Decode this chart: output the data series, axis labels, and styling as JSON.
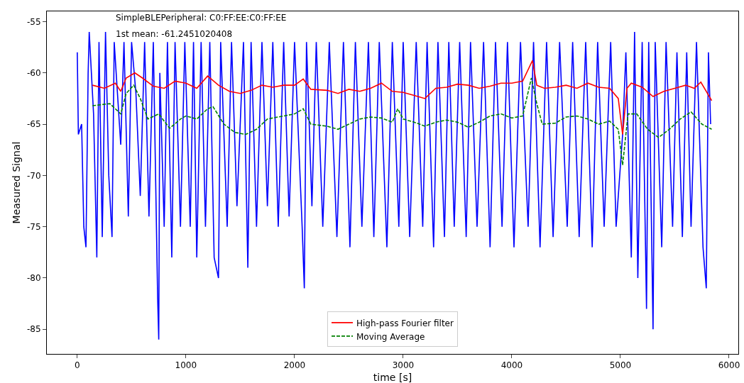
{
  "chart_data": {
    "type": "line",
    "xlabel": "time [s]",
    "ylabel": "Measured Signal",
    "annotations": [
      "SimpleBLEPeripheral: C0:FF:EE:C0:FF:EE",
      "1st mean: -61.2451020408"
    ],
    "xlim": [
      -280,
      6085
    ],
    "xticks": [
      0,
      1000,
      2000,
      3000,
      4000,
      5000,
      6000
    ],
    "ylim": [
      -87.4,
      -54
    ],
    "yticks": [
      -85,
      -80,
      -75,
      -70,
      -65,
      -60,
      -55
    ],
    "grid": false,
    "legend": "bottom",
    "marker": "none",
    "series": [
      {
        "color": "#0000ff",
        "line_style": "solid",
        "x": [
          0,
          10,
          40,
          60,
          80,
          100,
          110,
          150,
          180,
          200,
          230,
          260,
          290,
          320,
          340,
          370,
          400,
          430,
          470,
          500,
          540,
          580,
          620,
          660,
          700,
          740,
          750,
          760,
          800,
          830,
          870,
          900,
          950,
          990,
          1040,
          1070,
          1100,
          1140,
          1180,
          1220,
          1260,
          1300,
          1320,
          1380,
          1420,
          1470,
          1530,
          1570,
          1600,
          1650,
          1700,
          1750,
          1800,
          1850,
          1900,
          1950,
          2000,
          2070,
          2090,
          2110,
          2160,
          2200,
          2260,
          2320,
          2390,
          2450,
          2510,
          2560,
          2620,
          2680,
          2730,
          2780,
          2850,
          2900,
          2960,
          3000,
          3060,
          3120,
          3180,
          3220,
          3280,
          3320,
          3380,
          3420,
          3470,
          3520,
          3580,
          3620,
          3680,
          3740,
          3800,
          3850,
          3910,
          3960,
          4020,
          4080,
          4150,
          4200,
          4260,
          4320,
          4380,
          4440,
          4510,
          4560,
          4620,
          4680,
          4740,
          4790,
          4850,
          4910,
          4960,
          5020,
          5050,
          5100,
          5130,
          5160,
          5200,
          5240,
          5260,
          5300,
          5320,
          5380,
          5420,
          5480,
          5520,
          5570,
          5610,
          5650,
          5700,
          5760,
          5790,
          5810,
          5830
        ],
        "values": [
          -58,
          -66,
          -65,
          -75,
          -77,
          -60,
          -56,
          -64,
          -78,
          -57,
          -76,
          -56,
          -70,
          -76,
          -57,
          -62,
          -67,
          -57,
          -74,
          -57,
          -62,
          -72,
          -57,
          -74,
          -57,
          -82,
          -86,
          -60,
          -75,
          -57,
          -78,
          -57,
          -75,
          -57,
          -75,
          -57,
          -78,
          -57,
          -75,
          -57,
          -78,
          -80,
          -57,
          -75,
          -57,
          -73,
          -57,
          -79,
          -57,
          -75,
          -57,
          -73,
          -57,
          -75,
          -57,
          -74,
          -57,
          -75,
          -81,
          -57,
          -73,
          -57,
          -75,
          -57,
          -76,
          -57,
          -77,
          -57,
          -75,
          -57,
          -76,
          -57,
          -77,
          -57,
          -75,
          -57,
          -76,
          -57,
          -75,
          -57,
          -77,
          -57,
          -76,
          -57,
          -75,
          -57,
          -76,
          -57,
          -75,
          -57,
          -77,
          -57,
          -75,
          -57,
          -77,
          -57,
          -75,
          -57,
          -77,
          -57,
          -76,
          -57,
          -75,
          -57,
          -76,
          -57,
          -77,
          -57,
          -75,
          -57,
          -75,
          -66,
          -58,
          -78,
          -56,
          -80,
          -57,
          -83,
          -57,
          -85,
          -57,
          -77,
          -57,
          -75,
          -58,
          -76,
          -58,
          -75,
          -57,
          -77,
          -81,
          -58,
          -65
        ]
      },
      {
        "name": "High-pass Fourier filter",
        "color": "#ff0000",
        "line_style": "solid",
        "x": [
          140,
          250,
          350,
          400,
          450,
          530,
          600,
          700,
          800,
          900,
          1000,
          1100,
          1200,
          1300,
          1400,
          1500,
          1600,
          1700,
          1800,
          1900,
          2000,
          2080,
          2150,
          2300,
          2400,
          2500,
          2600,
          2700,
          2800,
          2900,
          3000,
          3100,
          3200,
          3300,
          3400,
          3500,
          3600,
          3700,
          3800,
          3900,
          4000,
          4100,
          4190,
          4230,
          4300,
          4400,
          4500,
          4600,
          4700,
          4800,
          4900,
          4980,
          5020,
          5060,
          5100,
          5200,
          5300,
          5400,
          5500,
          5600,
          5680,
          5740,
          5840
        ],
        "values": [
          -61.2,
          -61.5,
          -61,
          -61.8,
          -60.5,
          -60,
          -60.5,
          -61.3,
          -61.5,
          -60.8,
          -61,
          -61.5,
          -60.3,
          -61.2,
          -61.8,
          -62,
          -61.7,
          -61.2,
          -61.4,
          -61.2,
          -61.2,
          -60.6,
          -61.6,
          -61.7,
          -62,
          -61.6,
          -61.8,
          -61.5,
          -61,
          -61.8,
          -61.9,
          -62.2,
          -62.5,
          -61.5,
          -61.4,
          -61.1,
          -61.2,
          -61.5,
          -61.3,
          -61,
          -61,
          -60.8,
          -58.8,
          -61.2,
          -61.5,
          -61.4,
          -61.2,
          -61.5,
          -61,
          -61.4,
          -61.5,
          -62.5,
          -66,
          -61.5,
          -61,
          -61.4,
          -62.3,
          -61.8,
          -61.5,
          -61.2,
          -61.5,
          -60.9,
          -62.7
        ]
      },
      {
        "name": "Moving Average",
        "color": "#008000",
        "line_style": "dashed",
        "x": [
          140,
          300,
          400,
          450,
          520,
          580,
          650,
          750,
          850,
          950,
          1000,
          1100,
          1200,
          1250,
          1350,
          1450,
          1550,
          1650,
          1750,
          1900,
          2000,
          2080,
          2150,
          2300,
          2400,
          2500,
          2600,
          2700,
          2800,
          2900,
          2950,
          3000,
          3100,
          3200,
          3300,
          3400,
          3500,
          3600,
          3700,
          3800,
          3900,
          4000,
          4100,
          4180,
          4230,
          4280,
          4400,
          4500,
          4600,
          4700,
          4800,
          4900,
          4980,
          5020,
          5070,
          5150,
          5250,
          5350,
          5450,
          5550,
          5650,
          5750,
          5840
        ],
        "values": [
          -63.2,
          -63,
          -64,
          -62,
          -61.2,
          -62.5,
          -64.5,
          -64,
          -65.4,
          -64.5,
          -64.2,
          -64.5,
          -63.5,
          -63.3,
          -65,
          -65.8,
          -66,
          -65.5,
          -64.5,
          -64.2,
          -64,
          -63.5,
          -65,
          -65.2,
          -65.5,
          -65,
          -64.5,
          -64.3,
          -64.4,
          -64.8,
          -63.5,
          -64.5,
          -64.8,
          -65.2,
          -64.8,
          -64.6,
          -64.8,
          -65.3,
          -64.8,
          -64.2,
          -64,
          -64.4,
          -64.2,
          -60.5,
          -63,
          -65,
          -64.9,
          -64.3,
          -64.2,
          -64.5,
          -65,
          -64.7,
          -65.5,
          -69,
          -64,
          -64,
          -65.5,
          -66.3,
          -65.5,
          -64.5,
          -63.8,
          -65,
          -65.5
        ]
      }
    ]
  }
}
